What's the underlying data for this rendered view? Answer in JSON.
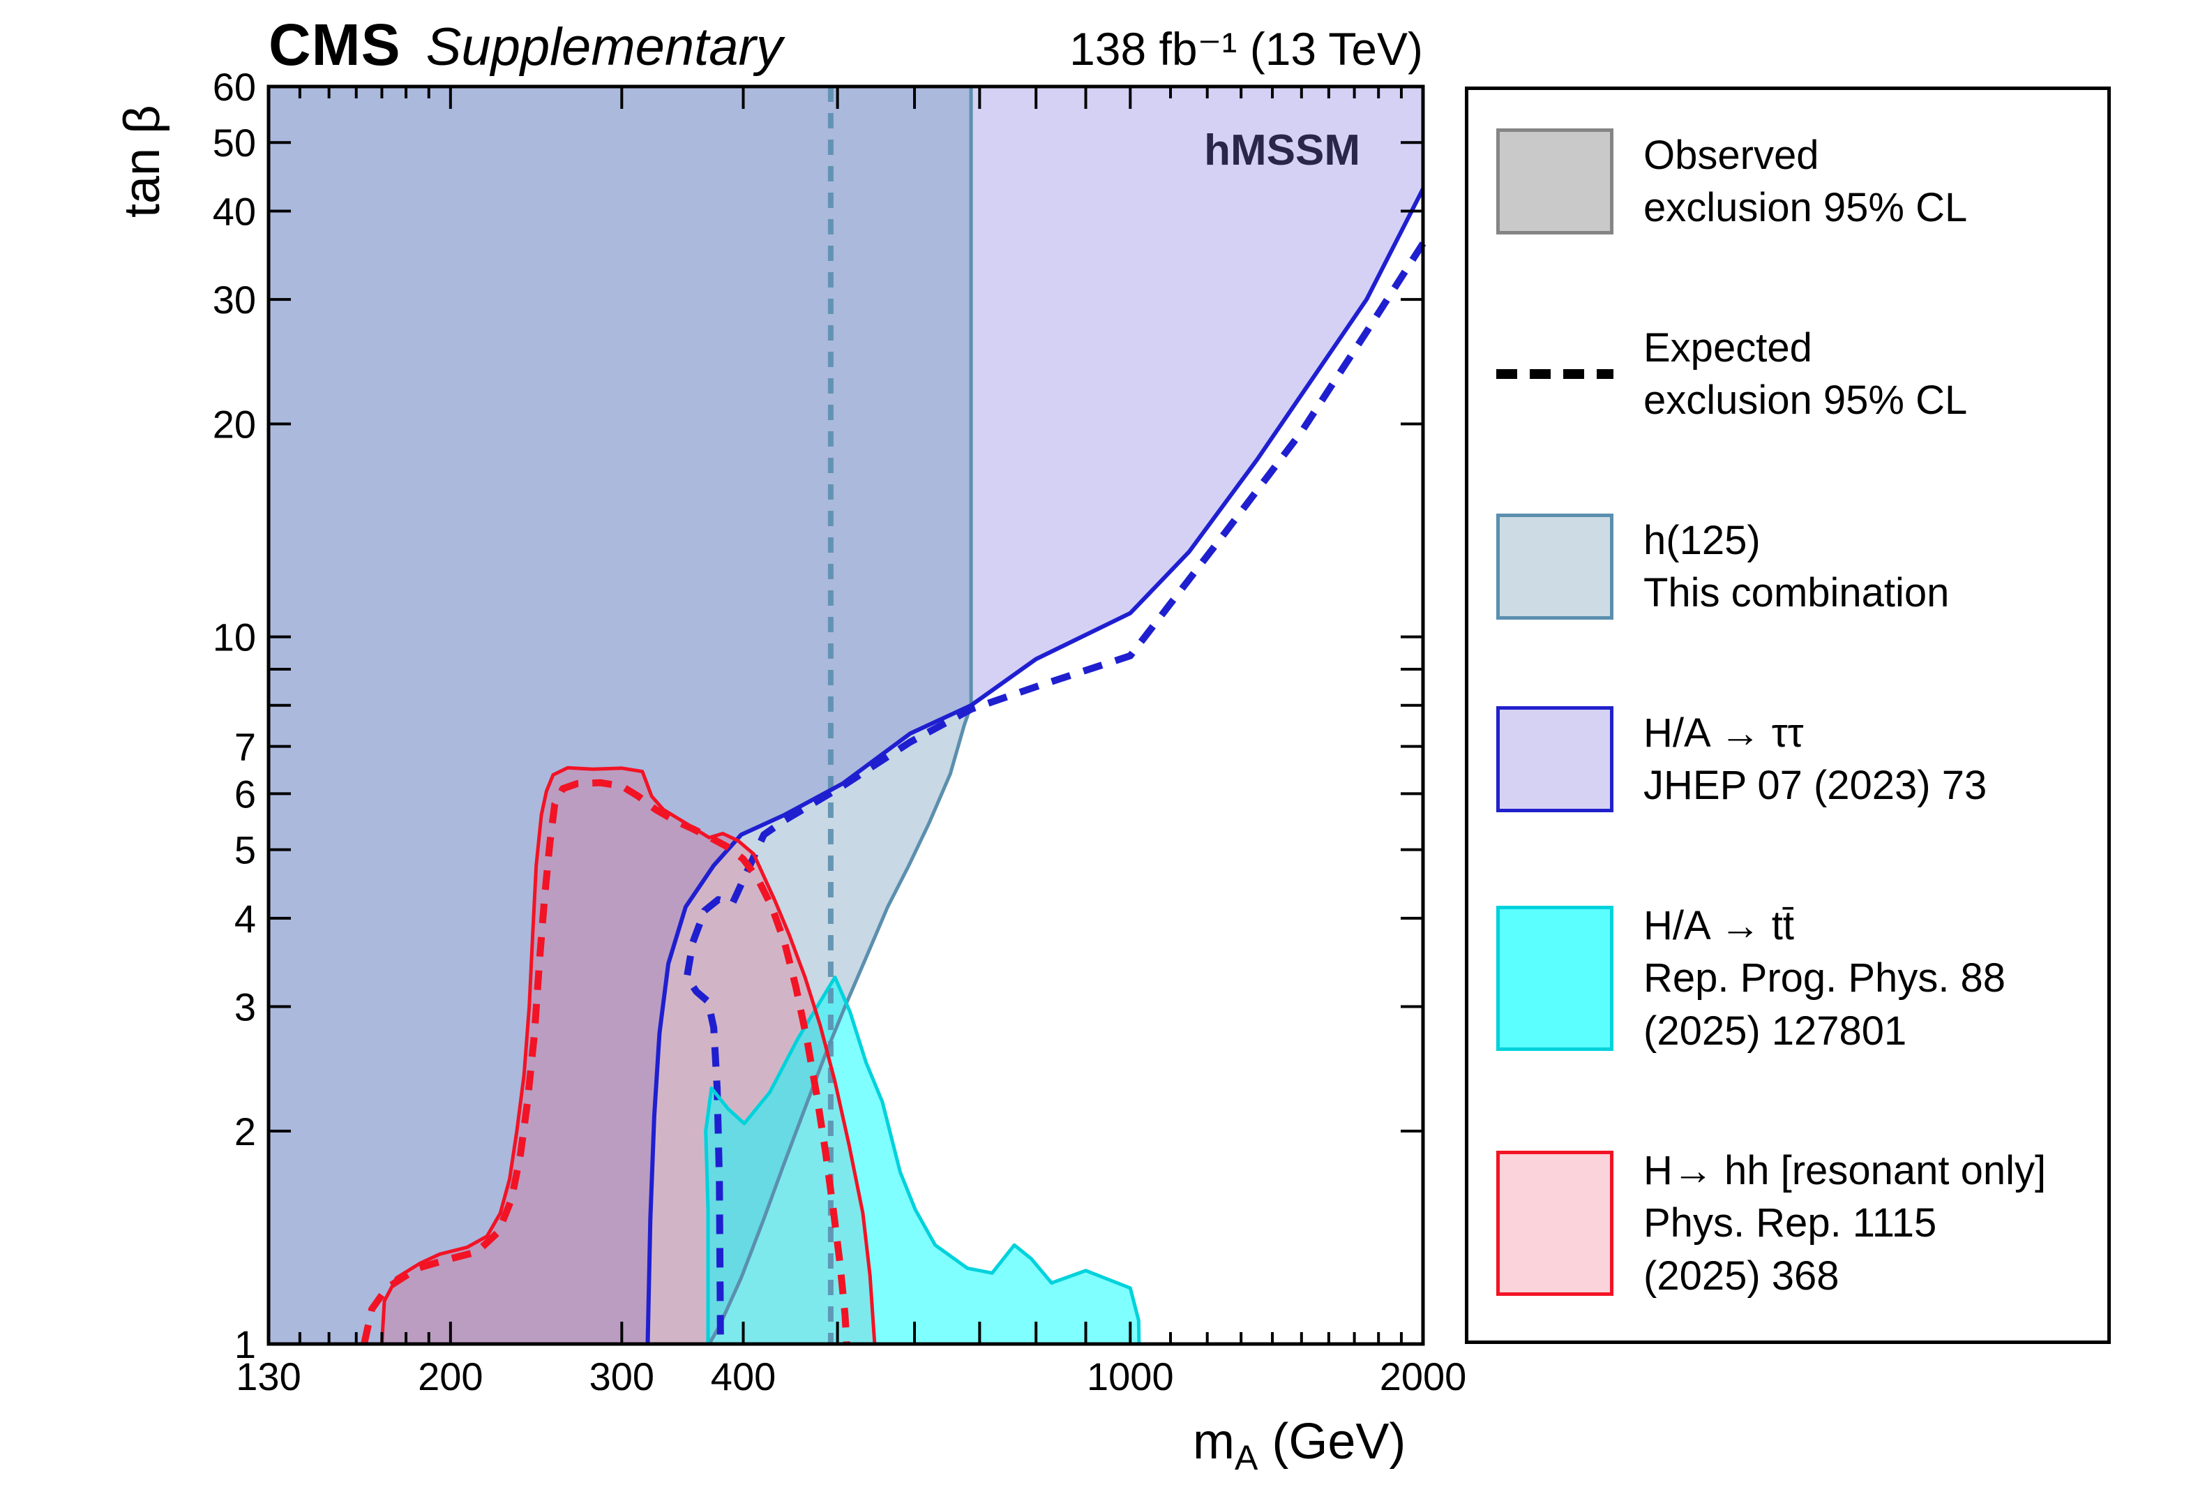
{
  "header": {
    "experiment": "CMS",
    "note": "Supplementary",
    "lumi": "138 fb⁻¹ (13 TeV)",
    "model_label": "hMSSM"
  },
  "axes": {
    "x": {
      "title_prefix": "m",
      "title_sub": "A",
      "title_suffix": " (GeV)",
      "min": 130,
      "max": 2000,
      "scale": "log",
      "labeled_ticks": [
        130,
        200,
        300,
        400,
        1000,
        2000
      ],
      "major_ticks": [
        200,
        300,
        400,
        500,
        600,
        700,
        800,
        900,
        1000,
        2000
      ],
      "minor_ticks": [
        140,
        150,
        160,
        170,
        180,
        190,
        1100,
        1200,
        1300,
        1400,
        1500,
        1600,
        1700,
        1800,
        1900
      ]
    },
    "y": {
      "title": "tan β",
      "min": 1,
      "max": 60,
      "scale": "log",
      "labeled_ticks": [
        1,
        2,
        3,
        4,
        5,
        6,
        7,
        10,
        20,
        30,
        40,
        50,
        60
      ],
      "major_ticks": [
        2,
        3,
        4,
        5,
        6,
        7,
        8,
        9,
        10,
        20,
        30,
        40,
        50,
        60
      ],
      "minor_ticks": []
    }
  },
  "legend": {
    "items": [
      {
        "id": "observed",
        "swatch": "box",
        "fill": "#c9c9c9",
        "border": "#858585",
        "lines": [
          "Observed",
          "exclusion 95% CL"
        ]
      },
      {
        "id": "expected",
        "swatch": "dash",
        "color": "#000000",
        "lines": [
          "Expected",
          "exclusion 95% CL"
        ]
      },
      {
        "id": "h125",
        "swatch": "box",
        "fill": "#ccdbe4",
        "border": "#5b8fae",
        "lines": [
          "h(125)",
          "This combination"
        ]
      },
      {
        "id": "htautau",
        "swatch": "box",
        "fill": "#d6d2f4",
        "border": "#2121cc",
        "lines": [
          "H/A → ττ",
          "JHEP 07 (2023) 73"
        ]
      },
      {
        "id": "httbar",
        "swatch": "box",
        "fill": "#5cffff",
        "border": "#00d2dc",
        "lines": [
          "H/A → tt̄",
          "Rep. Prog. Phys. 88",
          "(2025) 127801"
        ]
      },
      {
        "id": "hhh",
        "swatch": "box",
        "fill": "#fbd3da",
        "border": "#f21325",
        "lines": [
          "H→ hh [resonant only]",
          "Phys. Rep. 1115",
          "(2025) 368"
        ]
      }
    ]
  },
  "chart_data": {
    "type": "area",
    "title": "hMSSM exclusion, tan β vs m_A",
    "x_scale": "log",
    "y_scale": "log",
    "xlim": [
      130,
      2000
    ],
    "ylim": [
      1,
      60
    ],
    "grid": false,
    "legend_position": "right",
    "series": [
      {
        "id": "h125_expected",
        "label": "h(125) This combination — expected exclusion 95% CL",
        "line_color": "#5b8fae",
        "line_width": 8,
        "dash": "22 16",
        "line_opacity": 0.9,
        "points": [
          [
            492,
            60.0
          ],
          [
            492,
            1.0
          ]
        ]
      },
      {
        "id": "h125_observed",
        "label": "h(125) This combination — observed exclusion 95% CL",
        "line_color": "#5b8fae",
        "line_width": 5,
        "fill": "#5d8eaf",
        "fill_opacity": 0.34,
        "fill_order": 2,
        "points": [
          [
            369,
            1.0
          ],
          [
            378,
            1.06
          ],
          [
            398,
            1.24
          ],
          [
            419,
            1.49
          ],
          [
            440,
            1.79
          ],
          [
            462,
            2.14
          ],
          [
            486,
            2.57
          ],
          [
            510,
            3.02
          ],
          [
            536,
            3.54
          ],
          [
            563,
            4.15
          ],
          [
            592,
            4.75
          ],
          [
            621,
            5.45
          ],
          [
            653,
            6.4
          ],
          [
            675,
            7.5
          ],
          [
            686,
            8.0
          ],
          [
            686,
            60.0
          ]
        ],
        "region_close": [
          [
            130,
            60.0
          ],
          [
            130,
            1.0
          ]
        ]
      },
      {
        "id": "htautau_expected",
        "label": "H/A → ττ — expected exclusion 95% CL",
        "line_color": "#1f1fd0",
        "line_width": 10,
        "dash": "28 20",
        "points": [
          [
            2000,
            36.0
          ],
          [
            1750,
            27.0
          ],
          [
            1500,
            19.5
          ],
          [
            1250,
            14.0
          ],
          [
            1000,
            9.4
          ],
          [
            800,
            8.5
          ],
          [
            686,
            7.9
          ],
          [
            594,
            7.1
          ],
          [
            506,
            6.15
          ],
          [
            441,
            5.5
          ],
          [
            420,
            5.25
          ],
          [
            402,
            4.6
          ],
          [
            390,
            4.2
          ],
          [
            377,
            4.25
          ],
          [
            365,
            4.1
          ],
          [
            355,
            3.7
          ],
          [
            350,
            3.3
          ],
          [
            358,
            3.15
          ],
          [
            368,
            3.05
          ],
          [
            373,
            2.8
          ],
          [
            376,
            2.3
          ],
          [
            378,
            1.7
          ],
          [
            379,
            1.0
          ]
        ]
      },
      {
        "id": "htautau_observed",
        "label": "H/A → ττ — observed exclusion 95% CL",
        "line_color": "#1f1fd0",
        "line_width": 6,
        "fill": "#7b74e2",
        "fill_opacity": 0.33,
        "fill_order": 1,
        "points": [
          [
            319,
            1.0
          ],
          [
            321,
            1.5
          ],
          [
            324,
            2.1
          ],
          [
            328,
            2.75
          ],
          [
            335,
            3.45
          ],
          [
            349,
            4.15
          ],
          [
            373,
            4.75
          ],
          [
            398,
            5.25
          ],
          [
            441,
            5.6
          ],
          [
            506,
            6.2
          ],
          [
            594,
            7.3
          ],
          [
            686,
            8.0
          ],
          [
            800,
            9.3
          ],
          [
            1000,
            10.8
          ],
          [
            1150,
            13.2
          ],
          [
            1350,
            17.8
          ],
          [
            1550,
            23.5
          ],
          [
            1750,
            30.0
          ],
          [
            2000,
            43.0
          ]
        ],
        "region_close": [
          [
            2000,
            60.0
          ],
          [
            130,
            60.0
          ],
          [
            130,
            1.0
          ]
        ]
      },
      {
        "id": "httbar_observed",
        "label": "H/A → tt̄ — observed exclusion 95% CL",
        "line_color": "#00d2dc",
        "line_width": 5,
        "fill": "#00ffff",
        "fill_opacity": 0.5,
        "fill_order": 4,
        "points": [
          [
            368,
            1.0
          ],
          [
            368,
            1.55
          ],
          [
            366,
            2.0
          ],
          [
            371,
            2.3
          ],
          [
            386,
            2.15
          ],
          [
            401,
            2.05
          ],
          [
            426,
            2.27
          ],
          [
            455,
            2.7
          ],
          [
            480,
            3.05
          ],
          [
            497,
            3.3
          ],
          [
            515,
            2.95
          ],
          [
            535,
            2.5
          ],
          [
            556,
            2.2
          ],
          [
            580,
            1.75
          ],
          [
            601,
            1.55
          ],
          [
            630,
            1.38
          ],
          [
            680,
            1.28
          ],
          [
            721,
            1.26
          ],
          [
            760,
            1.38
          ],
          [
            791,
            1.32
          ],
          [
            830,
            1.22
          ],
          [
            900,
            1.27
          ],
          [
            1000,
            1.2
          ],
          [
            1020,
            1.08
          ],
          [
            1021,
            1.0
          ]
        ]
      },
      {
        "id": "hhh_expected",
        "label": "H → hh [resonant only] — expected exclusion 95% CL",
        "line_color": "#f21325",
        "line_width": 10,
        "dash": "28 20",
        "points": [
          [
            163,
            1.0
          ],
          [
            166,
            1.12
          ],
          [
            172,
            1.2
          ],
          [
            185,
            1.28
          ],
          [
            200,
            1.32
          ],
          [
            213,
            1.35
          ],
          [
            224,
            1.44
          ],
          [
            231,
            1.6
          ],
          [
            236,
            1.85
          ],
          [
            240,
            2.2
          ],
          [
            244,
            2.75
          ],
          [
            247,
            3.5
          ],
          [
            250,
            4.3
          ],
          [
            253,
            5.1
          ],
          [
            256,
            5.8
          ],
          [
            261,
            6.1
          ],
          [
            270,
            6.2
          ],
          [
            285,
            6.22
          ],
          [
            300,
            6.15
          ],
          [
            312,
            5.95
          ],
          [
            325,
            5.7
          ],
          [
            340,
            5.5
          ],
          [
            355,
            5.35
          ],
          [
            370,
            5.2
          ],
          [
            385,
            5.05
          ],
          [
            400,
            4.85
          ],
          [
            414,
            4.55
          ],
          [
            428,
            4.15
          ],
          [
            441,
            3.7
          ],
          [
            453,
            3.2
          ],
          [
            465,
            2.7
          ],
          [
            476,
            2.25
          ],
          [
            486,
            1.87
          ],
          [
            495,
            1.55
          ],
          [
            503,
            1.3
          ],
          [
            509,
            1.1
          ],
          [
            511,
            1.0
          ]
        ]
      },
      {
        "id": "hhh_observed",
        "label": "H → hh [resonant only] — observed exclusion 95% CL",
        "line_color": "#f21325",
        "line_width": 5,
        "fill": "#f04768",
        "fill_opacity": 0.24,
        "fill_order": 3,
        "points": [
          [
            170,
            1.0
          ],
          [
            171,
            1.15
          ],
          [
            176,
            1.24
          ],
          [
            186,
            1.3
          ],
          [
            195,
            1.34
          ],
          [
            208,
            1.37
          ],
          [
            218,
            1.42
          ],
          [
            225,
            1.53
          ],
          [
            230,
            1.71
          ],
          [
            234,
            2.0
          ],
          [
            238,
            2.4
          ],
          [
            241,
            3.0
          ],
          [
            243,
            3.8
          ],
          [
            245,
            4.75
          ],
          [
            248,
            5.6
          ],
          [
            251,
            6.05
          ],
          [
            255,
            6.38
          ],
          [
            264,
            6.53
          ],
          [
            280,
            6.5
          ],
          [
            300,
            6.52
          ],
          [
            315,
            6.45
          ],
          [
            322,
            5.95
          ],
          [
            331,
            5.7
          ],
          [
            353,
            5.4
          ],
          [
            369,
            5.2
          ],
          [
            381,
            5.27
          ],
          [
            395,
            5.15
          ],
          [
            410,
            4.93
          ],
          [
            431,
            4.24
          ],
          [
            446,
            3.79
          ],
          [
            463,
            3.3
          ],
          [
            480,
            2.82
          ],
          [
            497,
            2.35
          ],
          [
            514,
            1.91
          ],
          [
            531,
            1.53
          ],
          [
            540,
            1.25
          ],
          [
            546,
            1.0
          ]
        ]
      }
    ]
  }
}
